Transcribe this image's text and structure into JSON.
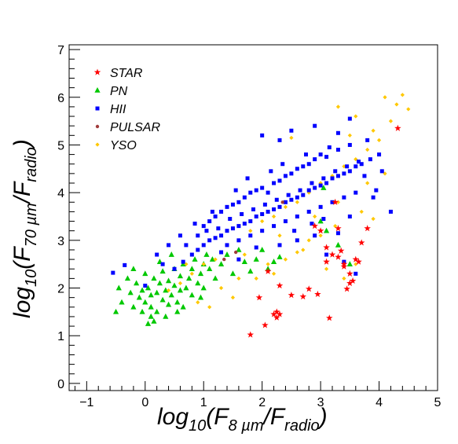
{
  "chart_data": {
    "type": "scatter",
    "xlabel": {
      "base": "log",
      "sub1": "10",
      "mid": "(F",
      "sub2": "8 µm",
      "slash": "/F",
      "sub3": "radio",
      "close": ")"
    },
    "ylabel": {
      "base": "log",
      "sub1": "10",
      "mid": "(F",
      "sub2": "70 µm",
      "slash": "/F",
      "sub3": "radio",
      "close": ")"
    },
    "xlim": [
      -1.3,
      5.0
    ],
    "ylim": [
      -0.15,
      7.1
    ],
    "xticks": [
      -1,
      0,
      1,
      2,
      3,
      4,
      5
    ],
    "yticks": [
      0,
      1,
      2,
      3,
      4,
      5,
      6,
      7
    ],
    "grid": false,
    "legend_position": "top-left",
    "series": [
      {
        "name": "HII",
        "marker": "square",
        "color": "#0000ff",
        "points": [
          [
            -0.55,
            2.32
          ],
          [
            -0.35,
            2.48
          ],
          [
            0.0,
            2.05
          ],
          [
            0.3,
            2.5
          ],
          [
            0.5,
            2.4
          ],
          [
            0.65,
            2.55
          ],
          [
            0.8,
            2.7
          ],
          [
            0.9,
            2.8
          ],
          [
            1.0,
            2.9
          ],
          [
            1.1,
            3.0
          ],
          [
            1.2,
            3.05
          ],
          [
            1.3,
            3.1
          ],
          [
            1.4,
            3.2
          ],
          [
            1.5,
            3.25
          ],
          [
            1.6,
            3.3
          ],
          [
            1.7,
            3.35
          ],
          [
            1.8,
            3.4
          ],
          [
            1.9,
            3.5
          ],
          [
            2.0,
            3.55
          ],
          [
            2.1,
            3.6
          ],
          [
            2.2,
            3.65
          ],
          [
            2.3,
            3.7
          ],
          [
            2.4,
            3.8
          ],
          [
            2.5,
            3.85
          ],
          [
            2.6,
            3.9
          ],
          [
            2.7,
            3.95
          ],
          [
            2.8,
            4.05
          ],
          [
            2.9,
            4.1
          ],
          [
            3.0,
            4.15
          ],
          [
            3.1,
            4.2
          ],
          [
            3.2,
            4.3
          ],
          [
            3.3,
            4.35
          ],
          [
            3.4,
            4.4
          ],
          [
            3.5,
            4.45
          ],
          [
            3.6,
            4.55
          ],
          [
            3.7,
            4.6
          ],
          [
            1.2,
            3.5
          ],
          [
            1.4,
            3.7
          ],
          [
            1.6,
            3.8
          ],
          [
            1.8,
            4.0
          ],
          [
            2.0,
            4.1
          ],
          [
            2.2,
            4.2
          ],
          [
            2.4,
            4.35
          ],
          [
            2.6,
            4.5
          ],
          [
            2.8,
            4.6
          ],
          [
            3.0,
            4.8
          ],
          [
            1.0,
            3.3
          ],
          [
            1.1,
            3.4
          ],
          [
            1.3,
            3.6
          ],
          [
            1.5,
            3.75
          ],
          [
            1.7,
            3.9
          ],
          [
            1.9,
            4.05
          ],
          [
            2.1,
            4.0
          ],
          [
            2.3,
            4.25
          ],
          [
            2.5,
            4.4
          ],
          [
            2.7,
            4.55
          ],
          [
            2.9,
            4.7
          ],
          [
            3.1,
            4.75
          ],
          [
            3.3,
            4.9
          ],
          [
            3.5,
            5.0
          ],
          [
            1.4,
            2.9
          ],
          [
            1.6,
            3.0
          ],
          [
            1.8,
            3.1
          ],
          [
            2.0,
            3.2
          ],
          [
            2.2,
            3.3
          ],
          [
            2.4,
            3.4
          ],
          [
            2.6,
            3.5
          ],
          [
            2.8,
            3.6
          ],
          [
            3.0,
            3.7
          ],
          [
            3.2,
            3.8
          ],
          [
            3.4,
            3.9
          ],
          [
            3.6,
            4.0
          ],
          [
            0.7,
            2.9
          ],
          [
            0.9,
            3.1
          ],
          [
            1.05,
            3.2
          ],
          [
            1.25,
            3.25
          ],
          [
            1.45,
            3.45
          ],
          [
            1.65,
            3.55
          ],
          [
            1.85,
            3.65
          ],
          [
            2.05,
            3.75
          ],
          [
            2.25,
            3.85
          ],
          [
            2.45,
            3.95
          ],
          [
            2.65,
            4.05
          ],
          [
            2.85,
            4.2
          ],
          [
            3.05,
            4.3
          ],
          [
            3.25,
            4.45
          ],
          [
            3.45,
            4.55
          ],
          [
            3.65,
            4.65
          ],
          [
            3.85,
            4.7
          ],
          [
            4.0,
            4.8
          ],
          [
            2.3,
            5.1
          ],
          [
            2.5,
            5.3
          ],
          [
            2.0,
            5.2
          ],
          [
            2.9,
            5.4
          ],
          [
            3.5,
            5.55
          ],
          [
            3.3,
            5.25
          ],
          [
            3.8,
            5.1
          ],
          [
            4.2,
            3.6
          ],
          [
            3.9,
            3.9
          ],
          [
            2.3,
            2.9
          ],
          [
            2.6,
            3.0
          ],
          [
            2.9,
            3.1
          ],
          [
            3.3,
            3.15
          ],
          [
            3.5,
            3.5
          ],
          [
            3.1,
            2.7
          ],
          [
            3.4,
            2.55
          ],
          [
            3.6,
            2.3
          ],
          [
            1.9,
            2.85
          ],
          [
            1.6,
            2.6
          ],
          [
            1.3,
            2.75
          ],
          [
            0.4,
            2.9
          ],
          [
            0.2,
            2.7
          ],
          [
            1.75,
            4.3
          ],
          [
            1.55,
            4.05
          ],
          [
            2.15,
            4.45
          ],
          [
            2.35,
            4.6
          ],
          [
            0.6,
            3.1
          ],
          [
            0.85,
            3.35
          ],
          [
            1.15,
            3.6
          ],
          [
            2.75,
            4.8
          ],
          [
            3.15,
            4.95
          ],
          [
            3.75,
            4.35
          ],
          [
            4.05,
            4.45
          ],
          [
            3.95,
            4.05
          ],
          [
            2.55,
            3.2
          ],
          [
            2.85,
            3.35
          ],
          [
            3.05,
            3.45
          ]
        ]
      },
      {
        "name": "PN",
        "marker": "triangle",
        "color": "#00c800",
        "points": [
          [
            -0.45,
            2.0
          ],
          [
            -0.4,
            1.7
          ],
          [
            -0.3,
            2.2
          ],
          [
            -0.25,
            1.9
          ],
          [
            -0.2,
            1.6
          ],
          [
            -0.15,
            2.1
          ],
          [
            -0.1,
            1.8
          ],
          [
            -0.05,
            1.95
          ],
          [
            0.0,
            1.7
          ],
          [
            0.0,
            2.3
          ],
          [
            0.05,
            2.0
          ],
          [
            0.1,
            1.6
          ],
          [
            0.1,
            1.85
          ],
          [
            0.15,
            2.2
          ],
          [
            0.2,
            1.9
          ],
          [
            0.2,
            1.5
          ],
          [
            0.25,
            2.1
          ],
          [
            0.3,
            1.75
          ],
          [
            0.3,
            2.35
          ],
          [
            0.35,
            1.95
          ],
          [
            0.4,
            2.15
          ],
          [
            0.4,
            1.65
          ],
          [
            0.45,
            1.85
          ],
          [
            0.5,
            2.05
          ],
          [
            0.5,
            2.4
          ],
          [
            0.55,
            1.7
          ],
          [
            0.6,
            1.95
          ],
          [
            0.6,
            2.25
          ],
          [
            0.65,
            2.5
          ],
          [
            0.7,
            2.0
          ],
          [
            0.75,
            2.2
          ],
          [
            0.8,
            1.85
          ],
          [
            0.8,
            2.4
          ],
          [
            0.85,
            2.6
          ],
          [
            0.9,
            2.1
          ],
          [
            0.95,
            2.3
          ],
          [
            1.0,
            2.5
          ],
          [
            1.0,
            2.0
          ],
          [
            1.05,
            2.7
          ],
          [
            1.1,
            2.4
          ],
          [
            1.15,
            2.6
          ],
          [
            1.2,
            2.2
          ],
          [
            1.3,
            2.5
          ],
          [
            1.4,
            2.7
          ],
          [
            1.5,
            2.3
          ],
          [
            1.6,
            2.8
          ],
          [
            1.7,
            2.55
          ],
          [
            1.8,
            2.35
          ],
          [
            1.9,
            2.6
          ],
          [
            2.0,
            2.8
          ],
          [
            2.1,
            2.4
          ],
          [
            2.2,
            2.55
          ],
          [
            0.05,
            1.25
          ],
          [
            0.1,
            1.4
          ],
          [
            -0.5,
            1.5
          ],
          [
            0.35,
            1.4
          ],
          [
            0.55,
            1.5
          ],
          [
            -0.05,
            1.5
          ],
          [
            0.15,
            1.3
          ],
          [
            0.65,
            1.6
          ],
          [
            2.3,
            2.65
          ],
          [
            3.0,
            3.4
          ],
          [
            3.1,
            3.2
          ],
          [
            3.5,
            2.5
          ],
          [
            3.3,
            2.9
          ],
          [
            3.05,
            4.1
          ],
          [
            0.25,
            2.55
          ],
          [
            0.45,
            2.7
          ],
          [
            -0.2,
            2.4
          ],
          [
            0.95,
            1.8
          ]
        ]
      },
      {
        "name": "YSO",
        "marker": "diamond",
        "color": "#ffc800",
        "points": [
          [
            0.4,
            1.95
          ],
          [
            0.6,
            2.1
          ],
          [
            0.8,
            2.3
          ],
          [
            1.0,
            2.5
          ],
          [
            1.2,
            2.6
          ],
          [
            1.4,
            2.9
          ],
          [
            1.6,
            3.0
          ],
          [
            1.8,
            3.2
          ],
          [
            2.0,
            3.4
          ],
          [
            2.2,
            3.5
          ],
          [
            2.4,
            3.7
          ],
          [
            2.6,
            3.8
          ],
          [
            2.8,
            4.0
          ],
          [
            3.0,
            4.2
          ],
          [
            3.2,
            4.35
          ],
          [
            3.4,
            4.55
          ],
          [
            3.6,
            4.7
          ],
          [
            3.8,
            4.9
          ],
          [
            4.0,
            5.1
          ],
          [
            4.2,
            5.5
          ],
          [
            3.3,
            5.8
          ],
          [
            3.6,
            5.6
          ],
          [
            3.9,
            5.3
          ],
          [
            4.1,
            6.0
          ],
          [
            4.3,
            5.85
          ],
          [
            4.5,
            5.75
          ],
          [
            4.4,
            6.05
          ],
          [
            3.5,
            5.2
          ],
          [
            2.5,
            5.15
          ],
          [
            3.25,
            3.3
          ],
          [
            3.0,
            3.1
          ],
          [
            2.7,
            2.8
          ],
          [
            2.4,
            2.6
          ],
          [
            3.1,
            2.4
          ],
          [
            3.4,
            2.2
          ],
          [
            3.6,
            2.5
          ],
          [
            3.9,
            3.45
          ],
          [
            2.8,
            3.0
          ],
          [
            2.6,
            2.75
          ],
          [
            0.9,
            1.7
          ],
          [
            1.1,
            1.6
          ],
          [
            1.5,
            1.8
          ],
          [
            1.9,
            2.2
          ],
          [
            2.1,
            2.5
          ],
          [
            1.3,
            2.0
          ],
          [
            0.7,
            2.5
          ],
          [
            1.7,
            2.7
          ],
          [
            2.3,
            3.1
          ],
          [
            2.9,
            3.5
          ],
          [
            3.3,
            3.8
          ],
          [
            3.7,
            3.6
          ],
          [
            3.8,
            4.2
          ],
          [
            4.1,
            4.4
          ],
          [
            2.2,
            2.3
          ],
          [
            1.6,
            2.2
          ]
        ]
      },
      {
        "name": "STAR",
        "marker": "star",
        "color": "#ff0000",
        "points": [
          [
            1.8,
            1.02
          ],
          [
            2.05,
            1.22
          ],
          [
            2.2,
            1.45
          ],
          [
            2.25,
            1.38
          ],
          [
            2.3,
            1.45
          ],
          [
            2.25,
            1.5
          ],
          [
            2.5,
            1.85
          ],
          [
            2.7,
            1.82
          ],
          [
            2.8,
            1.98
          ],
          [
            2.95,
            1.87
          ],
          [
            3.1,
            2.55
          ],
          [
            3.2,
            2.7
          ],
          [
            3.3,
            2.65
          ],
          [
            3.35,
            2.78
          ],
          [
            3.4,
            2.5
          ],
          [
            3.5,
            2.3
          ],
          [
            3.55,
            2.15
          ],
          [
            3.65,
            2.55
          ],
          [
            3.7,
            2.95
          ],
          [
            3.5,
            2.1
          ],
          [
            3.45,
            1.98
          ],
          [
            3.8,
            3.25
          ],
          [
            3.3,
            3.25
          ],
          [
            3.0,
            3.2
          ],
          [
            3.15,
            1.37
          ],
          [
            4.32,
            5.35
          ],
          [
            2.1,
            2.35
          ],
          [
            2.3,
            2.05
          ],
          [
            1.95,
            1.8
          ],
          [
            3.6,
            2.6
          ],
          [
            3.25,
            3.8
          ],
          [
            3.1,
            2.85
          ],
          [
            2.9,
            3.3
          ],
          [
            3.4,
            2.45
          ]
        ]
      },
      {
        "name": "PULSAR",
        "marker": "circle",
        "color": "#a03c3c",
        "points": [
          [
            1.35,
            2.6
          ],
          [
            1.55,
            2.75
          ],
          [
            2.35,
            3.8
          ]
        ]
      }
    ],
    "legend_order": [
      "STAR",
      "PN",
      "HII",
      "PULSAR",
      "YSO"
    ]
  }
}
